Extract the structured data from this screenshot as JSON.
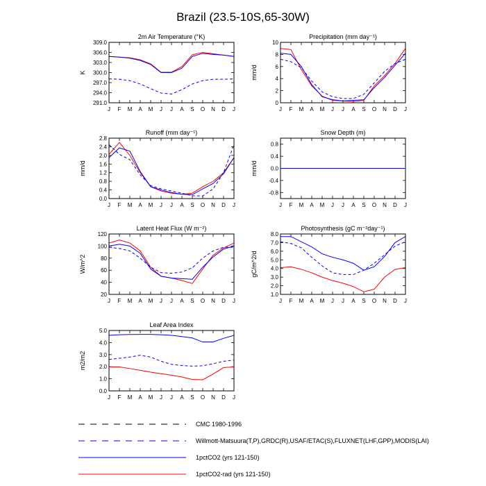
{
  "figure": {
    "title": "Brazil (23.5-10S,65-30W)"
  },
  "months": [
    "J",
    "F",
    "M",
    "A",
    "M",
    "J",
    "J",
    "A",
    "S",
    "O",
    "N",
    "D",
    "J"
  ],
  "legend": [
    {
      "label": "CMC 1980-1996",
      "color": "#000000",
      "dash": true
    },
    {
      "label": "Willmott-Matsuura(T,P),GRDC(R),USAF/ETAC(S),FLUXNET(LHF,GPP),MODIS(LAI)",
      "color": "#0000ff",
      "dash": true
    },
    {
      "label": "1pctCO2 (yrs 121-150)",
      "color": "#0000ff",
      "dash": false
    },
    {
      "label": "1pctCO2-rad (yrs 121-150)",
      "color": "#ff0000",
      "dash": false
    }
  ],
  "chart_data": [
    {
      "type": "line",
      "title": "2m Air Temperature (°K)",
      "ylabel": "K",
      "ylim": [
        291,
        309
      ],
      "yticks": [
        "291.0",
        "294.0",
        "297.0",
        "300.0",
        "303.0",
        "306.0",
        "309.0"
      ],
      "ytick_values": [
        291,
        294,
        297,
        300,
        303,
        306,
        309
      ],
      "series": [
        {
          "name": "1pctCO2-rad (yrs 121-150)",
          "color": "#ff0000",
          "dash": false,
          "values": [
            304.8,
            304.6,
            304.4,
            303.8,
            302.6,
            300.1,
            300.1,
            301.8,
            305.3,
            306.0,
            305.6,
            305.2,
            304.8
          ]
        },
        {
          "name": "1pctCO2 (yrs 121-150)",
          "color": "#0000ff",
          "dash": false,
          "values": [
            304.8,
            304.6,
            304.3,
            303.6,
            302.4,
            300.0,
            300.0,
            301.3,
            304.8,
            305.7,
            305.4,
            305.2,
            304.8
          ]
        },
        {
          "name": "Willmott-Matsuura(T,P),GRDC(R),USAF/ETAC(S),FLUXNET(LHF,GPP),MODIS(LAI)",
          "color": "#0000ff",
          "dash": true,
          "values": [
            298.1,
            298.0,
            297.6,
            296.6,
            295.2,
            293.9,
            293.6,
            294.9,
            296.6,
            297.6,
            298.0,
            298.0,
            298.1
          ]
        }
      ]
    },
    {
      "type": "line",
      "title": "Precipitation (mm day⁻¹)",
      "ylabel": "mm/d",
      "ylim": [
        0,
        10
      ],
      "yticks": [
        "0",
        "2",
        "4",
        "6",
        "8",
        "10"
      ],
      "ytick_values": [
        0,
        2,
        4,
        6,
        8,
        10
      ],
      "series": [
        {
          "name": "1pctCO2-rad (yrs 121-150)",
          "color": "#ff0000",
          "dash": false,
          "values": [
            9.0,
            8.8,
            5.5,
            2.8,
            1.1,
            0.4,
            0.3,
            0.2,
            0.4,
            2.8,
            4.5,
            6.5,
            9.0
          ]
        },
        {
          "name": "1pctCO2 (yrs 121-150)",
          "color": "#0000ff",
          "dash": false,
          "values": [
            8.2,
            8.0,
            6.0,
            3.0,
            1.0,
            0.5,
            0.3,
            0.4,
            0.5,
            2.5,
            4.2,
            6.2,
            8.2
          ]
        },
        {
          "name": "Willmott-Matsuura(T,P),GRDC(R),USAF/ETAC(S),FLUXNET(LHF,GPP),MODIS(LAI)",
          "color": "#0000ff",
          "dash": true,
          "values": [
            7.2,
            6.8,
            5.8,
            3.6,
            1.8,
            1.0,
            0.7,
            0.7,
            1.4,
            3.3,
            5.2,
            6.5,
            7.2
          ]
        }
      ]
    },
    {
      "type": "line",
      "title": "Runoff (mm day⁻¹)",
      "ylabel": "mm/d",
      "ylim": [
        0,
        2.8
      ],
      "yticks": [
        "0.0",
        "0.4",
        "0.8",
        "1.2",
        "1.6",
        "2.0",
        "2.4",
        "2.8"
      ],
      "ytick_values": [
        0,
        0.4,
        0.8,
        1.2,
        1.6,
        2.0,
        2.4,
        2.8
      ],
      "series": [
        {
          "name": "1pctCO2-rad (yrs 121-150)",
          "color": "#ff0000",
          "dash": false,
          "values": [
            2.05,
            2.6,
            2.0,
            1.2,
            0.55,
            0.35,
            0.25,
            0.2,
            0.25,
            0.55,
            0.8,
            1.2,
            1.9
          ]
        },
        {
          "name": "1pctCO2 (yrs 121-150)",
          "color": "#0000ff",
          "dash": false,
          "values": [
            1.9,
            2.35,
            2.2,
            1.25,
            0.55,
            0.4,
            0.28,
            0.2,
            0.18,
            0.45,
            0.7,
            1.15,
            1.9
          ]
        },
        {
          "name": "Willmott-Matsuura(T,P),GRDC(R),USAF/ETAC(S),FLUXNET(LHF,GPP),MODIS(LAI)",
          "color": "#0000ff",
          "dash": true,
          "values": [
            2.5,
            2.05,
            1.8,
            1.1,
            0.6,
            0.45,
            0.35,
            0.25,
            0.13,
            0.12,
            0.45,
            1.2,
            2.5
          ]
        }
      ]
    },
    {
      "type": "line",
      "title": "Snow Depth (m)",
      "ylabel": "mm/d",
      "ylim": [
        -1.0,
        1.0
      ],
      "yticks": [
        "-0.8",
        "-0.4",
        "0.0",
        "0.4",
        "0.8"
      ],
      "ytick_values": [
        -0.8,
        -0.4,
        0,
        0.4,
        0.8
      ],
      "series": [
        {
          "name": "1pctCO2-rad (yrs 121-150)",
          "color": "#ff0000",
          "dash": false,
          "values": [
            0,
            0,
            0,
            0,
            0,
            0,
            0,
            0,
            0,
            0,
            0,
            0,
            0
          ]
        },
        {
          "name": "1pctCO2 (yrs 121-150)",
          "color": "#0000ff",
          "dash": false,
          "values": [
            0,
            0,
            0,
            0,
            0,
            0,
            0,
            0,
            0,
            0,
            0,
            0,
            0
          ]
        },
        {
          "name": "Willmott-Matsuura(T,P),GRDC(R),USAF/ETAC(S),FLUXNET(LHF,GPP),MODIS(LAI)",
          "color": "#0000ff",
          "dash": true,
          "values": [
            0,
            0,
            0,
            0,
            0,
            0,
            0,
            0,
            0,
            0,
            0,
            0,
            0
          ]
        }
      ]
    },
    {
      "type": "line",
      "title": "Latent Heat Flux (W m⁻²)",
      "ylabel": "W/m^2",
      "ylim": [
        20,
        120
      ],
      "yticks": [
        "20",
        "40",
        "60",
        "80",
        "100",
        "120"
      ],
      "ytick_values": [
        20,
        40,
        60,
        80,
        100,
        120
      ],
      "series": [
        {
          "name": "1pctCO2-rad (yrs 121-150)",
          "color": "#ff0000",
          "dash": false,
          "values": [
            105,
            110,
            105,
            92,
            65,
            50,
            47,
            43,
            38,
            62,
            85,
            97,
            105
          ]
        },
        {
          "name": "1pctCO2 (yrs 121-150)",
          "color": "#0000ff",
          "dash": false,
          "values": [
            100,
            103,
            100,
            88,
            62,
            50,
            47,
            46,
            45,
            65,
            82,
            95,
            100
          ]
        },
        {
          "name": "Willmott-Matsuura(T,P),GRDC(R),USAF/ETAC(S),FLUXNET(LHF,GPP),MODIS(LAI)",
          "color": "#0000ff",
          "dash": true,
          "values": [
            98,
            96,
            92,
            80,
            65,
            56,
            55,
            57,
            64,
            80,
            92,
            98,
            98
          ]
        }
      ]
    },
    {
      "type": "line",
      "title": "Photosynthesis (gC m⁻²day⁻¹)",
      "ylabel": "gC/m^2/d",
      "ylim": [
        1.0,
        8.0
      ],
      "yticks": [
        "1.0",
        "2.0",
        "3.0",
        "4.0",
        "5.0",
        "6.0",
        "7.0",
        "8.0"
      ],
      "ytick_values": [
        1,
        2,
        3,
        4,
        5,
        6,
        7,
        8
      ],
      "series": [
        {
          "name": "1pctCO2-rad (yrs 121-150)",
          "color": "#ff0000",
          "dash": false,
          "values": [
            4.1,
            4.2,
            3.9,
            3.5,
            3.0,
            2.6,
            2.3,
            1.9,
            1.3,
            1.6,
            3.0,
            3.9,
            4.1
          ]
        },
        {
          "name": "1pctCO2 (yrs 121-150)",
          "color": "#0000ff",
          "dash": false,
          "values": [
            7.7,
            7.7,
            7.1,
            6.5,
            5.7,
            5.3,
            5.0,
            4.6,
            3.8,
            4.2,
            5.4,
            7.0,
            7.7
          ]
        },
        {
          "name": "Willmott-Matsuura(T,P),GRDC(R),USAF/ETAC(S),FLUXNET(LHF,GPP),MODIS(LAI)",
          "color": "#0000ff",
          "dash": true,
          "values": [
            7.1,
            6.9,
            6.4,
            5.3,
            4.3,
            3.5,
            3.3,
            3.3,
            3.8,
            4.6,
            5.6,
            6.6,
            7.1
          ]
        }
      ]
    },
    {
      "type": "line",
      "title": "Leaf Area Index",
      "ylabel": "m2/m2",
      "ylim": [
        0,
        5.0
      ],
      "yticks": [
        "0.0",
        "1.0",
        "2.0",
        "3.0",
        "4.0",
        "5.0"
      ],
      "ytick_values": [
        0,
        1,
        2,
        3,
        4,
        5
      ],
      "series": [
        {
          "name": "1pctCO2-rad (yrs 121-150)",
          "color": "#ff0000",
          "dash": false,
          "values": [
            1.98,
            1.98,
            1.85,
            1.7,
            1.55,
            1.42,
            1.3,
            1.15,
            0.95,
            0.92,
            1.4,
            1.93,
            1.98
          ]
        },
        {
          "name": "1pctCO2 (yrs 121-150)",
          "color": "#0000ff",
          "dash": false,
          "values": [
            4.6,
            4.65,
            4.67,
            4.68,
            4.68,
            4.65,
            4.6,
            4.5,
            4.38,
            4.05,
            4.05,
            4.35,
            4.6
          ]
        },
        {
          "name": "Willmott-Matsuura(T,P),GRDC(R),USAF/ETAC(S),FLUXNET(LHF,GPP),MODIS(LAI)",
          "color": "#0000ff",
          "dash": true,
          "values": [
            2.6,
            2.7,
            2.8,
            2.95,
            2.8,
            2.45,
            2.2,
            2.1,
            2.05,
            2.08,
            2.25,
            2.45,
            2.55
          ]
        }
      ]
    }
  ]
}
